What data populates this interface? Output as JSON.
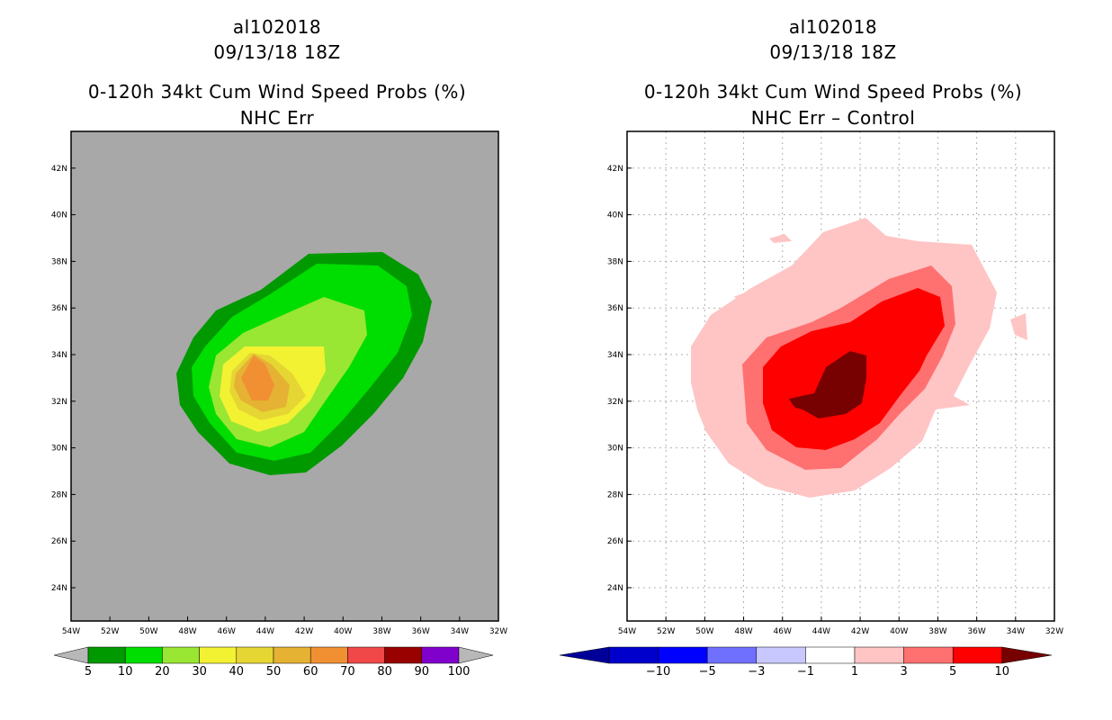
{
  "panels": [
    {
      "storm_id": "al102018",
      "datetime": "09/13/18 18Z",
      "product": "0-120h 34kt Cum Wind Speed Probs (%)",
      "subtitle": "NHC Err",
      "colorbar": {
        "labels": [
          "5",
          "10",
          "20",
          "30",
          "40",
          "50",
          "60",
          "70",
          "80",
          "90",
          "100"
        ],
        "colors": [
          "#009900",
          "#00dd00",
          "#99e633",
          "#f2f233",
          "#e6d633",
          "#e6b233",
          "#f09033",
          "#f04848",
          "#990000",
          "#8000cc"
        ],
        "left_arrow": "#b8b8b8",
        "right_arrow": "#b8b8b8"
      }
    },
    {
      "storm_id": "al102018",
      "datetime": "09/13/18 18Z",
      "product": "0-120h 34kt Cum Wind Speed Probs (%)",
      "subtitle": "NHC Err – Control",
      "colorbar": {
        "labels": [
          "−10",
          "−5",
          "−3",
          "−1",
          "1",
          "3",
          "5",
          "10"
        ],
        "colors": [
          "#0000cc",
          "#0000ff",
          "#7070ff",
          "#c8c8ff",
          "#ffffff",
          "#ffc4c4",
          "#ff7070",
          "#ff0000"
        ],
        "left_arrow": "#000099",
        "right_arrow": "#770000"
      }
    }
  ],
  "axes": {
    "lon_labels": [
      "54W",
      "52W",
      "50W",
      "48W",
      "46W",
      "44W",
      "42W",
      "40W",
      "38W",
      "36W",
      "34W",
      "32W"
    ],
    "lat_labels": [
      "24N",
      "26N",
      "28N",
      "30N",
      "32N",
      "34N",
      "36N",
      "38N",
      "40N",
      "42N"
    ],
    "colors": {
      "background_left": "#a8a8a8",
      "background_right": "#ffffff",
      "frame": "#000000",
      "gridline": "#b0b0b0"
    }
  },
  "contours": {
    "left": [
      {
        "level": "5",
        "color": "#009900"
      },
      {
        "level": "10",
        "color": "#00dd00"
      },
      {
        "level": "20",
        "color": "#99e633"
      },
      {
        "level": "30",
        "color": "#f2f233"
      },
      {
        "level": "40",
        "color": "#e6d633"
      },
      {
        "level": "50",
        "color": "#e6b233"
      },
      {
        "level": "60",
        "color": "#f09033"
      }
    ],
    "right": [
      {
        "level": "1",
        "color": "#ffc4c4"
      },
      {
        "level": "3",
        "color": "#ff7070"
      },
      {
        "level": "5",
        "color": "#ff0000"
      },
      {
        "level": "10",
        "color": "#770000"
      }
    ]
  }
}
